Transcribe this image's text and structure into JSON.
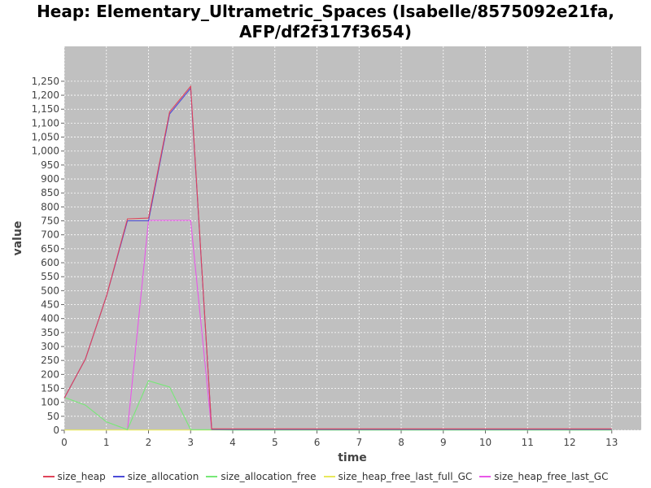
{
  "chart_data": {
    "type": "line",
    "title": "Heap: Elementary_Ultrametric_Spaces (Isabelle/8575092e21fa, AFP/df2f317f3654)",
    "xlabel": "time",
    "ylabel": "value",
    "xlim": [
      0,
      13.7
    ],
    "ylim": [
      0,
      1375
    ],
    "x_ticks": [
      0,
      1,
      2,
      3,
      4,
      5,
      6,
      7,
      8,
      9,
      10,
      11,
      12,
      13
    ],
    "y_ticks": [
      0,
      50,
      100,
      150,
      200,
      250,
      300,
      350,
      400,
      450,
      500,
      550,
      600,
      650,
      700,
      750,
      800,
      850,
      900,
      950,
      1000,
      1050,
      1100,
      1150,
      1200,
      1250
    ],
    "grid": true,
    "legend_position": "bottom",
    "x": [
      0,
      0.5,
      1,
      1.5,
      2,
      2.5,
      3,
      3.5,
      4,
      4.5,
      5,
      5.5,
      6,
      6.5,
      7,
      7.5,
      8,
      8.5,
      9,
      9.5,
      10,
      10.5,
      11,
      11.5,
      12,
      12.5,
      13
    ],
    "series": [
      {
        "name": "size_heap",
        "color": "#e0445a",
        "values": [
          115,
          255,
          480,
          757,
          760,
          1140,
          1232,
          5,
          5,
          5,
          5,
          5,
          5,
          5,
          5,
          5,
          5,
          5,
          5,
          5,
          5,
          5,
          5,
          5,
          5,
          5,
          5
        ]
      },
      {
        "name": "size_allocation",
        "color": "#4b4bd8",
        "values": [
          115,
          255,
          480,
          750,
          750,
          1133,
          1225,
          3,
          3,
          3,
          3,
          3,
          3,
          3,
          3,
          3,
          3,
          3,
          3,
          3,
          3,
          3,
          3,
          3,
          3,
          3,
          3
        ]
      },
      {
        "name": "size_allocation_free",
        "color": "#77e877",
        "values": [
          118,
          90,
          30,
          2,
          177,
          155,
          2,
          2,
          1,
          1,
          1,
          1,
          1,
          1,
          1,
          1,
          1,
          1,
          1,
          1,
          1,
          1,
          1,
          1,
          1,
          1,
          1
        ]
      },
      {
        "name": "size_heap_free_last_full_GC",
        "color": "#e8e85c",
        "values": [
          1,
          1,
          1,
          1,
          1,
          1,
          1,
          1,
          1,
          1,
          1,
          1,
          1,
          1,
          1,
          1,
          1,
          1,
          1,
          1,
          1,
          1,
          1,
          1,
          1,
          1,
          1
        ]
      },
      {
        "name": "size_heap_free_last_GC",
        "color": "#e858e8",
        "values": [
          null,
          null,
          null,
          0,
          752,
          752,
          752,
          2,
          2,
          2,
          2,
          2,
          2,
          2,
          2,
          2,
          2,
          2,
          2,
          2,
          2,
          2,
          2,
          2,
          2,
          2,
          2
        ]
      }
    ]
  }
}
